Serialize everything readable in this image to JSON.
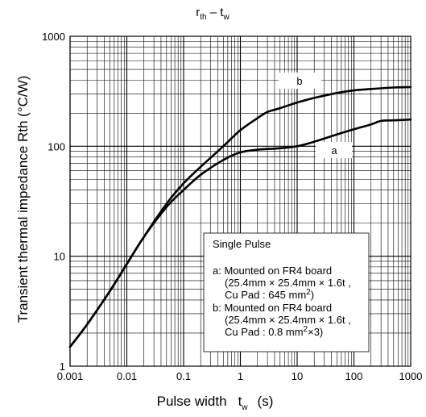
{
  "chart_data": {
    "type": "line",
    "title": {
      "main": "r",
      "sub1": "th",
      "dash": " – t",
      "sub2": "w"
    },
    "xlabel": {
      "main": "Pulse width",
      "sym": "t",
      "sub": "w",
      "unit": "(s)"
    },
    "ylabel": "Transient thermal impedance Rth (°C/W)",
    "xscale": "log",
    "yscale": "log",
    "xlim": [
      0.001,
      1000
    ],
    "ylim": [
      1,
      1000
    ],
    "grid": true,
    "x_tick_labels": [
      "0.001",
      "0.01",
      "0.1",
      "1",
      "10",
      "100",
      "1000"
    ],
    "y_tick_labels": [
      "1",
      "10",
      "100",
      "1000"
    ],
    "series": [
      {
        "name": "a",
        "x": [
          0.001,
          0.002,
          0.005,
          0.01,
          0.02,
          0.05,
          0.1,
          0.2,
          0.5,
          1,
          2,
          5,
          10,
          20,
          50,
          100,
          200,
          300,
          500,
          1000
        ],
        "y": [
          1.5,
          2.4,
          4.8,
          8.5,
          15,
          28,
          40,
          55,
          75,
          88,
          93,
          96,
          100,
          110,
          128,
          143,
          158,
          170,
          172,
          175
        ]
      },
      {
        "name": "b",
        "x": [
          0.001,
          0.002,
          0.005,
          0.01,
          0.02,
          0.05,
          0.1,
          0.2,
          0.5,
          1,
          2,
          3,
          5,
          10,
          20,
          50,
          100,
          200,
          500,
          1000
        ],
        "y": [
          1.5,
          2.4,
          4.8,
          8.5,
          15,
          30,
          46,
          65,
          100,
          140,
          180,
          205,
          222,
          250,
          275,
          305,
          322,
          332,
          342,
          345
        ]
      }
    ],
    "curve_labels": [
      {
        "text": "b",
        "series": "b"
      },
      {
        "text": "a",
        "series": "a"
      }
    ],
    "legend_box": {
      "title": "Single Pulse",
      "a": {
        "line1": "a: Mounted on FR4 board",
        "line2": "(25.4mm × 25.4mm × 1.6t ,",
        "line3_pre": "Cu Pad : 645 mm",
        "line3_sup": "2",
        "line3_post": ")"
      },
      "b": {
        "line1": "b: Mounted on FR4 board",
        "line2": "(25.4mm × 25.4mm × 1.6t ,",
        "line3_pre": "Cu Pad : 0.8 mm",
        "line3_sup": "2",
        "line3_post": "×3)"
      }
    }
  }
}
